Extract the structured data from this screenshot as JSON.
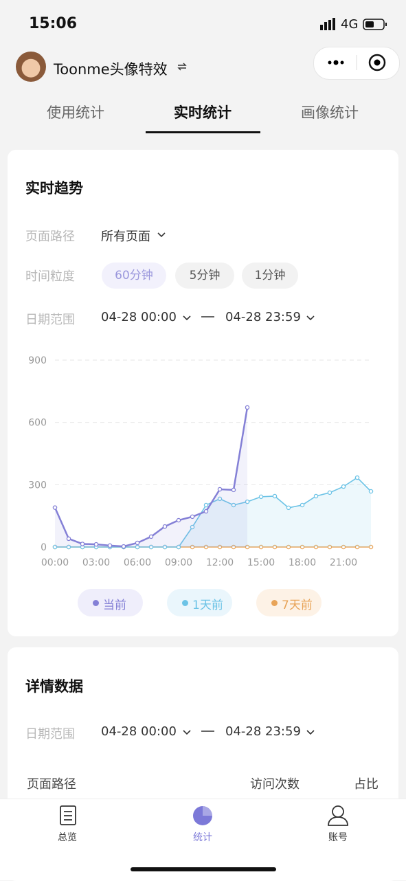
{
  "status_bar": {
    "time": "15:06",
    "network": "4G"
  },
  "header": {
    "title": "Toonme头像特效"
  },
  "tabs": {
    "items": [
      "使用统计",
      "实时统计",
      "画像统计"
    ],
    "active": 1
  },
  "trend_card": {
    "title": "实时趋势",
    "path_label": "页面路径",
    "path_value": "所有页面",
    "granularity_label": "时间粒度",
    "granularity_options": [
      "60分钟",
      "5分钟",
      "1分钟"
    ],
    "granularity_active": 0,
    "date_label": "日期范围",
    "date_start": "04-28 00:00",
    "date_end": "04-28 23:59"
  },
  "chart_data": {
    "type": "line",
    "categories": [
      "00:00",
      null,
      null,
      "03:00",
      null,
      null,
      "06:00",
      null,
      null,
      "09:00",
      null,
      null,
      "12:00",
      null,
      null,
      "15:00",
      null,
      null,
      "18:00",
      null,
      null,
      "21:00",
      null,
      null
    ],
    "series": [
      {
        "name": "当前",
        "color": "#8480d6",
        "values": [
          190,
          40,
          15,
          13,
          7,
          3,
          20,
          50,
          99,
          129,
          146,
          172,
          278,
          275,
          672,
          null,
          null,
          null,
          null,
          null,
          null,
          null,
          null,
          null
        ]
      },
      {
        "name": "1天前",
        "color": "#6cc3e6",
        "values": [
          0,
          0,
          0,
          0,
          0,
          0,
          0,
          0,
          0,
          0,
          96,
          202,
          232,
          202,
          218,
          242,
          245,
          189,
          202,
          245,
          262,
          291,
          334,
          268
        ]
      },
      {
        "name": "7天前",
        "color": "#e8a458",
        "values": [
          0,
          0,
          0,
          0,
          0,
          0,
          0,
          0,
          0,
          0,
          0,
          0,
          0,
          0,
          0,
          0,
          0,
          0,
          0,
          0,
          0,
          0,
          0,
          0
        ]
      }
    ],
    "ylim": [
      0,
      900
    ],
    "yticks": [
      0,
      300,
      600,
      900
    ],
    "grid": true
  },
  "detail_card": {
    "title": "详情数据",
    "date_label": "日期范围",
    "date_start": "04-28 00:00",
    "date_end": "04-28 23:59",
    "columns": [
      "页面路径",
      "访问次数",
      "占比"
    ]
  },
  "nav": {
    "items": [
      "总览",
      "统计",
      "账号"
    ],
    "active": 1
  }
}
